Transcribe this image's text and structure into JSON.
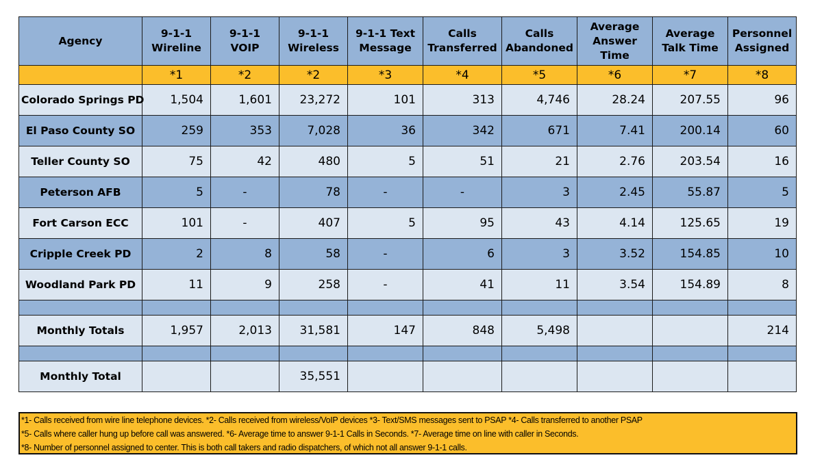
{
  "headers": [
    "Agency",
    "9-1-1 Wireline",
    "9-1-1 VOIP",
    "9-1-1 Wireless",
    "9-1-1 Text Message",
    "Calls Transferred",
    "Calls Abandoned",
    "Average Answer Time",
    "Average Talk Time",
    "Personnel Assigned"
  ],
  "refs": [
    "",
    "*1",
    "*2",
    "*2",
    "*3",
    "*4",
    "*5",
    "*6",
    "*7",
    "*8"
  ],
  "rows": [
    [
      "Colorado Springs PD",
      "1,504",
      "1,601",
      "23,272",
      "101",
      "313",
      "4,746",
      "28.24",
      "207.55",
      "96"
    ],
    [
      "El Paso County SO",
      "259",
      "353",
      "7,028",
      "36",
      "342",
      "671",
      "7.41",
      "200.14",
      "60"
    ],
    [
      "Teller County SO",
      "75",
      "42",
      "480",
      "5",
      "51",
      "21",
      "2.76",
      "203.54",
      "16"
    ],
    [
      "Peterson AFB",
      "5",
      "-",
      "78",
      "-",
      "-",
      "3",
      "2.45",
      "55.87",
      "5"
    ],
    [
      "Fort Carson ECC",
      "101",
      "-",
      "407",
      "5",
      "95",
      "43",
      "4.14",
      "125.65",
      "19"
    ],
    [
      "Cripple Creek PD",
      "2",
      "8",
      "58",
      "-",
      "6",
      "3",
      "3.52",
      "154.85",
      "10"
    ],
    [
      "Woodland Park PD",
      "11",
      "9",
      "258",
      "-",
      "41",
      "11",
      "3.54",
      "154.89",
      "8"
    ]
  ],
  "monthly_totals": [
    "Monthly Totals",
    "1,957",
    "2,013",
    "31,581",
    "147",
    "848",
    "5,498",
    "",
    "",
    "214"
  ],
  "monthly_total": [
    "Monthly Total",
    "",
    "",
    "35,551",
    "",
    "",
    "",
    "",
    "",
    ""
  ],
  "footnotes": [
    "*1- Calls received from wire line telephone devices. *2- Calls received from wireless/VoIP devices *3- Text/SMS messages sent to PSAP *4- Calls transferred to another PSAP",
    "*5- Calls where caller hung up before call was answered. *6- Average time to answer 9-1-1 Calls in Seconds. *7- Average time on line with caller in Seconds.",
    "*8- Number of personnel assigned to center. This is both call takers and radio dispatchers, of which not all answer 9-1-1 calls."
  ],
  "colors": {
    "header_blue": "#95b3d7",
    "row_light": "#dce6f1",
    "legend_yellow": "#fbbe2b"
  }
}
